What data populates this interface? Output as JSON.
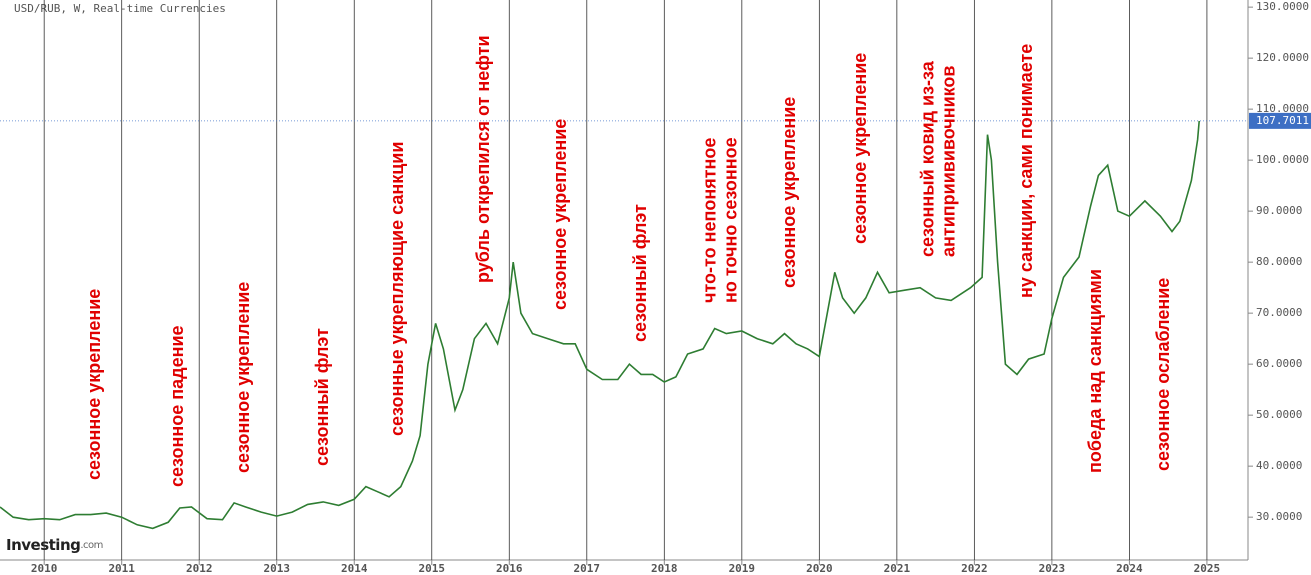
{
  "chart_data": {
    "type": "line",
    "title": "USD/RUB, W, Real-time Currencies",
    "watermark": "Investing",
    "watermark_suffix": ".com",
    "color": "#2e7d32",
    "x": [
      2009.43,
      2009.6,
      2009.8,
      2010.0,
      2010.2,
      2010.4,
      2010.6,
      2010.8,
      2011.0,
      2011.2,
      2011.4,
      2011.6,
      2011.75,
      2011.9,
      2012.1,
      2012.3,
      2012.45,
      2012.6,
      2012.8,
      2013.0,
      2013.2,
      2013.4,
      2013.6,
      2013.8,
      2014.0,
      2014.15,
      2014.3,
      2014.45,
      2014.6,
      2014.75,
      2014.85,
      2014.95,
      2015.05,
      2015.15,
      2015.3,
      2015.4,
      2015.55,
      2015.7,
      2015.85,
      2016.0,
      2016.05,
      2016.15,
      2016.3,
      2016.5,
      2016.7,
      2016.85,
      2017.0,
      2017.2,
      2017.4,
      2017.55,
      2017.7,
      2017.85,
      2018.0,
      2018.15,
      2018.3,
      2018.5,
      2018.65,
      2018.8,
      2019.0,
      2019.2,
      2019.4,
      2019.55,
      2019.7,
      2019.85,
      2020.0,
      2020.2,
      2020.3,
      2020.45,
      2020.6,
      2020.75,
      2020.9,
      2021.1,
      2021.3,
      2021.5,
      2021.7,
      2021.85,
      2021.95,
      2022.1,
      2022.17,
      2022.22,
      2022.3,
      2022.4,
      2022.55,
      2022.7,
      2022.9,
      2023.0,
      2023.15,
      2023.35,
      2023.5,
      2023.6,
      2023.72,
      2023.85,
      2024.0,
      2024.2,
      2024.4,
      2024.55,
      2024.65,
      2024.8,
      2024.88,
      2024.9
    ],
    "values": [
      32,
      30,
      29.5,
      29.7,
      29.5,
      30.5,
      30.5,
      30.8,
      30,
      28.5,
      27.8,
      29,
      31.8,
      32,
      29.7,
      29.5,
      32.8,
      32,
      31,
      30.2,
      31,
      32.5,
      33,
      32.3,
      33.5,
      36,
      35,
      34,
      36,
      41,
      46,
      60,
      68,
      63,
      51,
      55,
      65,
      68,
      64,
      73,
      80,
      70,
      66,
      65,
      64,
      64,
      59,
      57,
      57,
      60,
      58,
      58,
      56.5,
      57.5,
      62,
      63,
      67,
      66,
      66.5,
      65,
      64,
      66,
      64,
      63,
      61.5,
      78,
      73,
      70,
      73,
      78,
      74,
      74.5,
      75,
      73,
      72.5,
      74,
      75,
      77,
      105,
      100,
      80,
      60,
      58,
      61,
      62,
      69,
      77,
      81,
      91,
      97,
      99,
      90,
      89,
      92,
      89,
      86,
      88,
      96,
      104,
      107.7
    ],
    "last_value": 107.7011,
    "annotations": [
      [
        "сезонное укрепление"
      ],
      [
        "сезонное падение"
      ],
      [
        "сезонное укрепление"
      ],
      [
        "сезонный флэт"
      ],
      [
        "сезонные укрепляющие санкции"
      ],
      [
        "рубль открепился от нефти"
      ],
      [
        "сезонное укрепление"
      ],
      [
        "сезонный флэт"
      ],
      [
        "что-то непонятное",
        "но точно сезонное"
      ],
      [
        "сезонное укрепление"
      ],
      [
        "сезонное укрепление"
      ],
      [
        "сезонный ковид из-за",
        "антиприививочников"
      ],
      [
        "ну санкции, сами понимаете"
      ],
      [
        "победа над санкциями"
      ],
      [
        "сезонное ослабление"
      ]
    ],
    "xlim": [
      2009.43,
      2025.53
    ],
    "ylim": [
      21.6,
      131.4
    ],
    "xticks": [
      2010,
      2011,
      2012,
      2013,
      2014,
      2015,
      2016,
      2017,
      2018,
      2019,
      2020,
      2021,
      2022,
      2023,
      2024,
      2025
    ],
    "yticks": [
      {
        "value": 30,
        "label": "30.0000"
      },
      {
        "value": 40,
        "label": "40.0000"
      },
      {
        "value": 50,
        "label": "50.0000"
      },
      {
        "value": 60,
        "label": "60.0000"
      },
      {
        "value": 70,
        "label": "70.0000"
      },
      {
        "value": 80,
        "label": "80.0000"
      },
      {
        "value": 90,
        "label": "90.0000"
      },
      {
        "value": 100,
        "label": "100.0000"
      },
      {
        "value": 110,
        "label": "110.0000"
      },
      {
        "value": 120,
        "label": "120.0000"
      },
      {
        "value": 130,
        "label": "130.0000"
      }
    ],
    "grid": "x"
  }
}
